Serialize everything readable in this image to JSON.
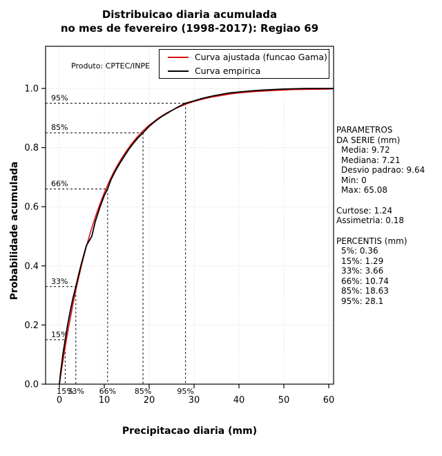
{
  "title": {
    "line1": "Distribuicao diaria acumulada",
    "line2": "no mes de fevereiro (1998-2017): Regiao 69"
  },
  "plot": {
    "product_note": "Produto: CPTEC/INPE"
  },
  "stats_panel": {
    "serie": {
      "title_line1": "PARAMETROS",
      "title_line2": "DA SERIE (mm)",
      "media": "Media: 9.72",
      "mediana": "Mediana: 7.21",
      "desvio_padrao": "Desvio padrao: 9.64",
      "min": "Min: 0",
      "max": "Max: 65.08"
    },
    "forma": {
      "curtose": "Curtose: 1.24",
      "assimetria": "Assimetria: 0.18"
    },
    "percentis": {
      "title": "PERCENTIS (mm)",
      "p5": "5%: 0.36",
      "p15": "15%: 1.29",
      "p33": "33%: 3.66",
      "p66": "66%: 10.74",
      "p85": "85%: 18.63",
      "p95": "95%: 28.1"
    }
  },
  "chart_data": {
    "type": "line",
    "title": "Distribuicao diaria acumulada no mes de fevereiro (1998-2017): Regiao 69",
    "xlabel": "Precipitacao diaria (mm)",
    "ylabel": "Probabilidade acumulada",
    "xlim": [
      0,
      65.08
    ],
    "ylim": [
      0,
      1.0
    ],
    "x_ticks": [
      0,
      10,
      20,
      30,
      40,
      50,
      60
    ],
    "y_ticks": [
      0,
      0.2,
      0.4,
      0.6,
      0.8,
      1
    ],
    "grid": true,
    "legend_position": "top-inside",
    "annotation": "Produto: CPTEC/INPE",
    "series": [
      {
        "name": "Curva ajustada (funcao Gama)",
        "color": "#dd1111",
        "x": [
          0,
          0.5,
          1,
          1.5,
          2,
          2.5,
          3,
          3.5,
          4,
          4.5,
          5,
          6,
          7,
          8,
          9,
          10,
          11,
          12,
          13,
          14,
          15,
          16,
          17,
          18,
          19,
          20,
          22,
          24,
          26,
          28,
          30,
          32,
          34,
          36,
          38,
          40,
          44,
          48,
          52,
          56,
          60,
          65
        ],
        "y": [
          0,
          0.051,
          0.099,
          0.145,
          0.188,
          0.229,
          0.268,
          0.306,
          0.341,
          0.374,
          0.406,
          0.465,
          0.518,
          0.565,
          0.608,
          0.647,
          0.682,
          0.714,
          0.742,
          0.767,
          0.79,
          0.811,
          0.83,
          0.847,
          0.862,
          0.876,
          0.899,
          0.918,
          0.933,
          0.946,
          0.956,
          0.964,
          0.971,
          0.976,
          0.981,
          0.985,
          0.99,
          0.993,
          0.996,
          0.997,
          0.998,
          0.999
        ],
        "distribution": "Gamma"
      },
      {
        "name": "Curva empirica",
        "color": "#000000",
        "x": [
          0,
          0.36,
          0.8,
          1.29,
          1.8,
          2.4,
          3.0,
          3.66,
          4.3,
          5,
          6,
          7.21,
          8,
          9,
          10,
          10.74,
          11.5,
          12.5,
          13.5,
          14.5,
          15.5,
          16.5,
          17.5,
          18.63,
          20,
          21.5,
          23,
          25,
          26.5,
          28.1,
          30,
          32,
          34,
          36,
          38,
          40,
          43,
          46,
          50,
          55,
          60,
          65.08
        ],
        "y": [
          0,
          0.05,
          0.103,
          0.15,
          0.198,
          0.245,
          0.29,
          0.33,
          0.372,
          0.413,
          0.468,
          0.5,
          0.55,
          0.597,
          0.638,
          0.66,
          0.692,
          0.722,
          0.748,
          0.772,
          0.795,
          0.815,
          0.833,
          0.85,
          0.872,
          0.891,
          0.907,
          0.925,
          0.938,
          0.95,
          0.958,
          0.967,
          0.974,
          0.98,
          0.985,
          0.988,
          0.992,
          0.995,
          0.998,
          1.0,
          1.0,
          1.0
        ]
      }
    ],
    "percentile_markers": [
      {
        "label": "15%",
        "x": 1.29,
        "p": 0.15
      },
      {
        "label": "33%",
        "x": 3.66,
        "p": 0.33
      },
      {
        "label": "66%",
        "x": 10.74,
        "p": 0.66
      },
      {
        "label": "85%",
        "x": 18.63,
        "p": 0.85
      },
      {
        "label": "95%",
        "x": 28.1,
        "p": 0.95
      }
    ],
    "statistics": {
      "media": 9.72,
      "mediana": 7.21,
      "desvio_padrao": 9.64,
      "min": 0,
      "max": 65.08,
      "curtose": 1.24,
      "assimetria": 0.18,
      "percentis": {
        "5": 0.36,
        "15": 1.29,
        "33": 3.66,
        "66": 10.74,
        "85": 18.63,
        "95": 28.1
      }
    }
  }
}
